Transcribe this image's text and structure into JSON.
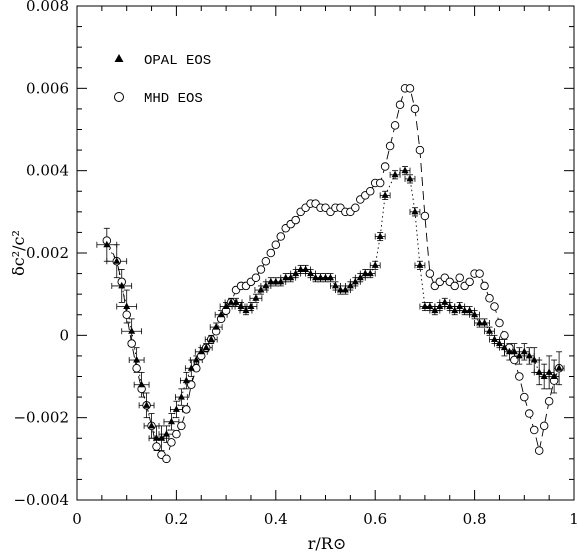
{
  "chart_data": {
    "type": "scatter",
    "title": "",
    "xlabel": "r/R⊙",
    "ylabel": "δc²/c²",
    "xlim": [
      0,
      1
    ],
    "ylim": [
      -0.004,
      0.008
    ],
    "xticks": [
      0,
      0.2,
      0.4,
      0.6,
      0.8,
      1
    ],
    "xtick_labels": [
      "0",
      "0.2",
      "0.4",
      "0.6",
      "0.8",
      "1"
    ],
    "yticks": [
      -0.004,
      -0.002,
      0,
      0.002,
      0.004,
      0.006,
      0.008
    ],
    "ytick_labels": [
      "−0.004",
      "−0.002",
      "0",
      "0.002",
      "0.004",
      "0.006",
      "0.008"
    ],
    "grid": false,
    "legend_position": "top-left",
    "series": [
      {
        "name": "OPAL EOS",
        "marker": "filled-triangle",
        "line": "dotted",
        "x": [
          0.06,
          0.08,
          0.09,
          0.1,
          0.11,
          0.12,
          0.13,
          0.14,
          0.15,
          0.16,
          0.17,
          0.18,
          0.19,
          0.2,
          0.21,
          0.22,
          0.23,
          0.24,
          0.25,
          0.26,
          0.27,
          0.28,
          0.29,
          0.3,
          0.31,
          0.32,
          0.33,
          0.34,
          0.35,
          0.36,
          0.37,
          0.38,
          0.39,
          0.4,
          0.41,
          0.42,
          0.43,
          0.44,
          0.45,
          0.46,
          0.47,
          0.48,
          0.49,
          0.5,
          0.51,
          0.52,
          0.53,
          0.54,
          0.55,
          0.56,
          0.57,
          0.58,
          0.59,
          0.6,
          0.61,
          0.62,
          0.64,
          0.66,
          0.67,
          0.68,
          0.69,
          0.7,
          0.71,
          0.72,
          0.73,
          0.74,
          0.75,
          0.76,
          0.77,
          0.78,
          0.79,
          0.8,
          0.81,
          0.82,
          0.83,
          0.84,
          0.85,
          0.86,
          0.87,
          0.88,
          0.89,
          0.9,
          0.91,
          0.92,
          0.93,
          0.94,
          0.95,
          0.96,
          0.97
        ],
        "y": [
          0.0022,
          0.0018,
          0.0012,
          0.0007,
          0.0001,
          -0.0006,
          -0.0012,
          -0.0017,
          -0.0022,
          -0.0025,
          -0.0025,
          -0.0024,
          -0.0021,
          -0.0018,
          -0.0015,
          -0.0011,
          -0.0008,
          -0.0006,
          -0.0004,
          -0.0003,
          -0.0001,
          0.0002,
          0.0005,
          0.0007,
          0.0008,
          0.0008,
          0.0007,
          0.0006,
          0.0007,
          0.0009,
          0.0011,
          0.0012,
          0.0013,
          0.0013,
          0.0013,
          0.0014,
          0.0014,
          0.0015,
          0.0016,
          0.0016,
          0.0015,
          0.0014,
          0.0014,
          0.0014,
          0.0014,
          0.0012,
          0.0011,
          0.0011,
          0.0012,
          0.0013,
          0.0014,
          0.0015,
          0.0015,
          0.0017,
          0.0024,
          0.0034,
          0.0039,
          0.004,
          0.0038,
          0.003,
          0.0017,
          0.0007,
          0.0007,
          0.0006,
          0.0007,
          0.0008,
          0.0007,
          0.0006,
          0.0007,
          0.0006,
          0.0006,
          0.0005,
          0.0003,
          0.0003,
          0.0001,
          -0.0001,
          -0.0002,
          -0.0003,
          -0.0004,
          -0.0004,
          -0.0005,
          -0.0004,
          -0.0005,
          -0.0006,
          -0.0009,
          -0.001,
          -0.0009,
          -0.001,
          -0.0008
        ],
        "xerr": [
          0.02,
          0.02,
          0.02,
          0.02,
          0.02,
          0.015,
          0.015,
          0.015,
          0.015,
          0.015,
          0.015,
          0.015,
          0.015,
          0.012,
          0.012,
          0.012,
          0.012,
          0.012,
          0.012,
          0.012,
          0.012,
          0.012,
          0.012,
          0.012,
          0.012,
          0.012,
          0.012,
          0.012,
          0.012,
          0.012,
          0.012,
          0.01,
          0.01,
          0.01,
          0.01,
          0.01,
          0.01,
          0.01,
          0.01,
          0.01,
          0.01,
          0.01,
          0.01,
          0.01,
          0.01,
          0.01,
          0.01,
          0.01,
          0.01,
          0.01,
          0.01,
          0.01,
          0.01,
          0.01,
          0.01,
          0.01,
          0.01,
          0.01,
          0.01,
          0.01,
          0.01,
          0.01,
          0.01,
          0.01,
          0.01,
          0.01,
          0.01,
          0.01,
          0.01,
          0.01,
          0.01,
          0.01,
          0.01,
          0.01,
          0.01,
          0.01,
          0.01,
          0.01,
          0.01,
          0.01,
          0.01,
          0.01,
          0.01,
          0.01,
          0.01,
          0.01,
          0.01,
          0.01,
          0.01
        ],
        "yerr": [
          0.0004,
          0.0004,
          0.0004,
          0.0004,
          0.0003,
          0.0003,
          0.0003,
          0.0003,
          0.0003,
          0.0003,
          0.0003,
          0.0002,
          0.0002,
          0.0002,
          0.0002,
          0.0002,
          0.0002,
          0.0001,
          0.0001,
          0.0001,
          0.0001,
          0.0001,
          0.0001,
          0.0001,
          0.0001,
          0.0001,
          0.0001,
          0.0001,
          0.0001,
          0.0001,
          0.0001,
          0.0001,
          0.0001,
          0.0001,
          0.0001,
          0.0001,
          0.0001,
          0.0001,
          0.0001,
          0.0001,
          0.0001,
          0.0001,
          0.0001,
          0.0001,
          0.0001,
          0.0001,
          0.0001,
          0.0001,
          0.0001,
          0.0001,
          0.0001,
          0.0001,
          0.0001,
          0.0001,
          0.0001,
          0.0001,
          0.0001,
          0.0001,
          0.0001,
          0.0001,
          0.0001,
          0.0001,
          0.0001,
          0.0001,
          0.0001,
          0.0001,
          0.0001,
          0.0001,
          0.0001,
          0.0001,
          0.0001,
          0.0001,
          0.0001,
          0.0001,
          0.0001,
          0.0001,
          0.0001,
          0.0002,
          0.0002,
          0.0002,
          0.0002,
          0.0002,
          0.0002,
          0.0003,
          0.0003,
          0.0003,
          0.0004,
          0.0004,
          0.0004
        ]
      },
      {
        "name": "MHD EOS",
        "marker": "open-circle",
        "line": "dashed",
        "x": [
          0.06,
          0.08,
          0.09,
          0.1,
          0.11,
          0.12,
          0.13,
          0.14,
          0.15,
          0.16,
          0.17,
          0.18,
          0.19,
          0.2,
          0.21,
          0.22,
          0.23,
          0.24,
          0.25,
          0.26,
          0.27,
          0.28,
          0.29,
          0.3,
          0.31,
          0.32,
          0.33,
          0.34,
          0.35,
          0.36,
          0.37,
          0.38,
          0.39,
          0.4,
          0.41,
          0.42,
          0.43,
          0.44,
          0.45,
          0.46,
          0.47,
          0.48,
          0.49,
          0.5,
          0.51,
          0.52,
          0.53,
          0.54,
          0.55,
          0.56,
          0.57,
          0.58,
          0.59,
          0.6,
          0.61,
          0.62,
          0.63,
          0.64,
          0.65,
          0.66,
          0.67,
          0.68,
          0.69,
          0.7,
          0.71,
          0.72,
          0.73,
          0.74,
          0.75,
          0.76,
          0.77,
          0.78,
          0.79,
          0.8,
          0.81,
          0.82,
          0.83,
          0.84,
          0.85,
          0.86,
          0.87,
          0.88,
          0.89,
          0.9,
          0.91,
          0.92,
          0.93,
          0.94,
          0.95,
          0.96,
          0.97
        ],
        "y": [
          0.0023,
          0.0018,
          0.0013,
          0.0005,
          -0.0002,
          -0.0008,
          -0.0013,
          -0.0017,
          -0.0022,
          -0.0027,
          -0.0029,
          -0.003,
          -0.0026,
          -0.0024,
          -0.0022,
          -0.0018,
          -0.0012,
          -0.0008,
          -0.0005,
          -0.0003,
          -0.0001,
          0.0001,
          0.0004,
          0.0006,
          0.0008,
          0.0011,
          0.0012,
          0.0012,
          0.0013,
          0.0014,
          0.0016,
          0.0018,
          0.002,
          0.0022,
          0.0024,
          0.0026,
          0.0027,
          0.0028,
          0.003,
          0.0031,
          0.0032,
          0.0032,
          0.0031,
          0.0031,
          0.003,
          0.0031,
          0.0031,
          0.003,
          0.003,
          0.0031,
          0.0033,
          0.0034,
          0.0035,
          0.0037,
          0.0037,
          0.0041,
          0.0046,
          0.0051,
          0.0056,
          0.006,
          0.006,
          0.0055,
          0.0045,
          0.0029,
          0.0015,
          0.0012,
          0.0013,
          0.0014,
          0.0013,
          0.0012,
          0.0014,
          0.0012,
          0.0013,
          0.0015,
          0.0015,
          0.0012,
          0.0009,
          0.0007,
          0.0003,
          0.0,
          -0.0003,
          -0.0006,
          -0.001,
          -0.0015,
          -0.0019,
          -0.0023,
          -0.0028,
          -0.0022,
          -0.0016,
          -0.0011,
          -0.0008
        ]
      }
    ]
  }
}
